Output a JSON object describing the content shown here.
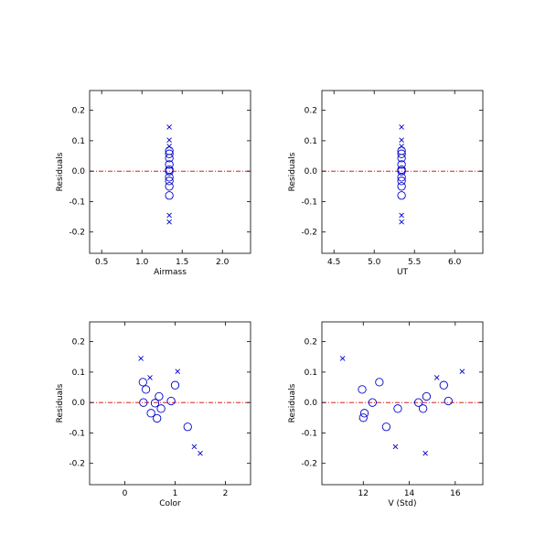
{
  "chart_data": [
    {
      "type": "scatter",
      "xlabel": "Airmass",
      "ylabel": "Residuals",
      "xlim": [
        0.35,
        2.35
      ],
      "ylim": [
        -0.27,
        0.265
      ],
      "xticks": [
        0.5,
        1.0,
        1.5,
        2.0
      ],
      "xtick_labels": [
        "0.5",
        "1.0",
        "1.5",
        "2.0"
      ],
      "yticks": [
        -0.2,
        -0.1,
        0.0,
        0.1,
        0.2
      ],
      "ytick_labels": [
        "-0.2",
        "-0.1",
        "0.0",
        "0.1",
        "0.2"
      ],
      "zero_line": 0,
      "series": [
        {
          "marker": "circle",
          "points": [
            [
              1.34,
              0.067
            ],
            [
              1.34,
              0.057
            ],
            [
              1.34,
              0.043
            ],
            [
              1.34,
              0.022
            ],
            [
              1.34,
              0.005
            ],
            [
              1.34,
              0.0
            ],
            [
              1.34,
              -0.02
            ],
            [
              1.34,
              -0.032
            ],
            [
              1.34,
              -0.05
            ],
            [
              1.34,
              -0.08
            ]
          ]
        },
        {
          "marker": "x",
          "points": [
            [
              1.34,
              0.145
            ],
            [
              1.34,
              0.102
            ],
            [
              1.34,
              0.082
            ],
            [
              1.34,
              -0.145
            ],
            [
              1.34,
              -0.167
            ]
          ]
        }
      ]
    },
    {
      "type": "scatter",
      "xlabel": "UT",
      "ylabel": "Residuals",
      "xlim": [
        4.35,
        6.35
      ],
      "ylim": [
        -0.27,
        0.265
      ],
      "xticks": [
        4.5,
        5.0,
        5.5,
        6.0
      ],
      "xtick_labels": [
        "4.5",
        "5.0",
        "5.5",
        "6.0"
      ],
      "yticks": [
        -0.2,
        -0.1,
        0.0,
        0.1,
        0.2
      ],
      "ytick_labels": [
        "-0.2",
        "-0.1",
        "0.0",
        "0.1",
        "0.2"
      ],
      "zero_line": 0,
      "series": [
        {
          "marker": "circle",
          "points": [
            [
              5.34,
              0.067
            ],
            [
              5.34,
              0.057
            ],
            [
              5.34,
              0.043
            ],
            [
              5.34,
              0.022
            ],
            [
              5.34,
              0.005
            ],
            [
              5.34,
              0.0
            ],
            [
              5.34,
              -0.02
            ],
            [
              5.34,
              -0.032
            ],
            [
              5.34,
              -0.05
            ],
            [
              5.34,
              -0.08
            ]
          ]
        },
        {
          "marker": "x",
          "points": [
            [
              5.34,
              0.145
            ],
            [
              5.34,
              0.102
            ],
            [
              5.34,
              0.082
            ],
            [
              5.34,
              -0.145
            ],
            [
              5.34,
              -0.167
            ]
          ]
        }
      ]
    },
    {
      "type": "scatter",
      "xlabel": "Color",
      "ylabel": "Residuals",
      "xlim": [
        -0.7,
        2.5
      ],
      "ylim": [
        -0.27,
        0.265
      ],
      "xticks": [
        0,
        1,
        2
      ],
      "xtick_labels": [
        "0",
        "1",
        "2"
      ],
      "yticks": [
        -0.2,
        -0.1,
        0.0,
        0.1,
        0.2
      ],
      "ytick_labels": [
        "-0.2",
        "-0.1",
        "0.0",
        "0.1",
        "0.2"
      ],
      "zero_line": 0,
      "series": [
        {
          "marker": "circle",
          "points": [
            [
              0.36,
              0.067
            ],
            [
              0.42,
              0.043
            ],
            [
              0.37,
              0.0
            ],
            [
              0.52,
              -0.035
            ],
            [
              0.6,
              -0.002
            ],
            [
              0.64,
              -0.052
            ],
            [
              0.68,
              0.02
            ],
            [
              0.72,
              -0.02
            ],
            [
              0.92,
              0.005
            ],
            [
              1.0,
              0.057
            ],
            [
              1.25,
              -0.08
            ]
          ]
        },
        {
          "marker": "x",
          "points": [
            [
              0.32,
              0.145
            ],
            [
              0.5,
              0.082
            ],
            [
              1.05,
              0.102
            ],
            [
              1.38,
              -0.145
            ],
            [
              1.5,
              -0.167
            ]
          ]
        }
      ]
    },
    {
      "type": "scatter",
      "xlabel": "V (Std)",
      "ylabel": "Residuals",
      "xlim": [
        10.2,
        17.2
      ],
      "ylim": [
        -0.27,
        0.265
      ],
      "xticks": [
        12,
        14,
        16
      ],
      "xtick_labels": [
        "12",
        "14",
        "16"
      ],
      "yticks": [
        -0.2,
        -0.1,
        0.0,
        0.1,
        0.2
      ],
      "ytick_labels": [
        "-0.2",
        "-0.1",
        "0.0",
        "0.1",
        "0.2"
      ],
      "zero_line": 0,
      "series": [
        {
          "marker": "circle",
          "points": [
            [
              11.95,
              0.043
            ],
            [
              12.0,
              -0.05
            ],
            [
              12.05,
              -0.035
            ],
            [
              12.4,
              0.0
            ],
            [
              12.7,
              0.067
            ],
            [
              13.0,
              -0.08
            ],
            [
              13.5,
              -0.02
            ],
            [
              14.4,
              0.0
            ],
            [
              14.6,
              -0.02
            ],
            [
              14.75,
              0.02
            ],
            [
              15.5,
              0.057
            ],
            [
              15.7,
              0.005
            ]
          ]
        },
        {
          "marker": "x",
          "points": [
            [
              11.1,
              0.145
            ],
            [
              13.4,
              -0.145
            ],
            [
              14.7,
              -0.167
            ],
            [
              15.2,
              0.082
            ],
            [
              16.3,
              0.102
            ]
          ]
        }
      ]
    }
  ],
  "colors": {
    "marker": "#0000cc",
    "zero_line": "#cc0000",
    "axes": "#000000"
  }
}
